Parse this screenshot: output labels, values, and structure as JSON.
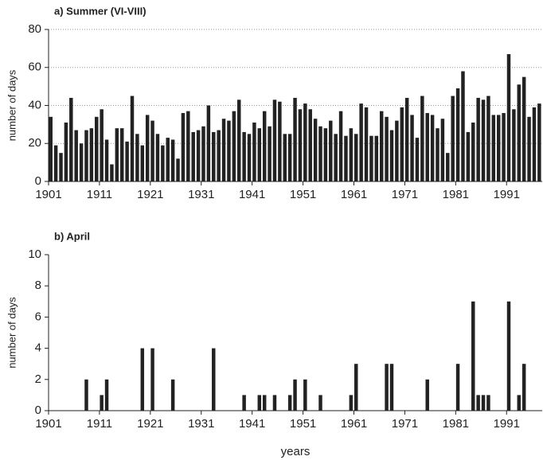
{
  "chart_data": [
    {
      "type": "bar",
      "title": "a) Summer (VI-VIII)",
      "ylabel": "number of days",
      "color": "#222222",
      "grid": true,
      "x": [
        1901,
        1902,
        1903,
        1904,
        1905,
        1906,
        1907,
        1908,
        1909,
        1910,
        1911,
        1912,
        1913,
        1914,
        1915,
        1916,
        1917,
        1918,
        1919,
        1920,
        1921,
        1922,
        1923,
        1924,
        1925,
        1926,
        1927,
        1928,
        1929,
        1930,
        1931,
        1932,
        1933,
        1934,
        1935,
        1936,
        1937,
        1938,
        1939,
        1940,
        1941,
        1942,
        1943,
        1944,
        1945,
        1946,
        1947,
        1948,
        1949,
        1950,
        1951,
        1952,
        1953,
        1954,
        1955,
        1956,
        1957,
        1958,
        1959,
        1960,
        1961,
        1962,
        1963,
        1964,
        1965,
        1966,
        1967,
        1968,
        1969,
        1970,
        1971,
        1972,
        1973,
        1974,
        1975,
        1976,
        1977,
        1978,
        1979,
        1980,
        1981,
        1982,
        1983,
        1984,
        1985,
        1986,
        1987,
        1988,
        1989,
        1990,
        1991,
        1992,
        1993,
        1994,
        1995,
        1996,
        1997
      ],
      "values": [
        34,
        19,
        15,
        31,
        44,
        27,
        20,
        27,
        28,
        34,
        38,
        22,
        9,
        28,
        28,
        21,
        45,
        25,
        19,
        35,
        32,
        25,
        19,
        23,
        22,
        12,
        36,
        37,
        26,
        27,
        29,
        40,
        26,
        27,
        33,
        32,
        37,
        43,
        26,
        25,
        31,
        28,
        37,
        29,
        43,
        42,
        25,
        25,
        44,
        38,
        41,
        38,
        33,
        29,
        28,
        32,
        25,
        37,
        24,
        28,
        25,
        41,
        39,
        24,
        24,
        37,
        34,
        27,
        32,
        39,
        44,
        35,
        23,
        45,
        36,
        35,
        28,
        33,
        15,
        45,
        49,
        58,
        26,
        31,
        44,
        43,
        45,
        35,
        35,
        36,
        67,
        38,
        51,
        55,
        34,
        39,
        41
      ],
      "xlim": [
        1901,
        1998
      ],
      "xticks": [
        1901,
        1911,
        1921,
        1931,
        1941,
        1951,
        1961,
        1971,
        1981,
        1991
      ],
      "ylim": [
        0,
        80
      ],
      "yticks": [
        0,
        20,
        40,
        60,
        80
      ]
    },
    {
      "type": "bar",
      "title": "b) April",
      "ylabel": "number of days",
      "xlabel": "years",
      "color": "#222222",
      "grid": false,
      "x": [
        1901,
        1902,
        1903,
        1904,
        1905,
        1906,
        1907,
        1908,
        1909,
        1910,
        1911,
        1912,
        1913,
        1914,
        1915,
        1916,
        1917,
        1918,
        1919,
        1920,
        1921,
        1922,
        1923,
        1924,
        1925,
        1926,
        1927,
        1928,
        1929,
        1930,
        1931,
        1932,
        1933,
        1934,
        1935,
        1936,
        1937,
        1938,
        1939,
        1940,
        1941,
        1942,
        1943,
        1944,
        1945,
        1946,
        1947,
        1948,
        1949,
        1950,
        1951,
        1952,
        1953,
        1954,
        1955,
        1956,
        1957,
        1958,
        1959,
        1960,
        1961,
        1962,
        1963,
        1964,
        1965,
        1966,
        1967,
        1968,
        1969,
        1970,
        1971,
        1972,
        1973,
        1974,
        1975,
        1976,
        1977,
        1978,
        1979,
        1980,
        1981,
        1982,
        1983,
        1984,
        1985,
        1986,
        1987,
        1988,
        1989,
        1990,
        1991,
        1992,
        1993,
        1994,
        1995,
        1996,
        1997
      ],
      "values": [
        0,
        0,
        0,
        0,
        0,
        0,
        0,
        2,
        0,
        0,
        1,
        2,
        0,
        0,
        0,
        0,
        0,
        0,
        4,
        0,
        4,
        0,
        0,
        0,
        2,
        0,
        0,
        0,
        0,
        0,
        0,
        0,
        4,
        0,
        0,
        0,
        0,
        0,
        1,
        0,
        0,
        1,
        1,
        0,
        1,
        0,
        0,
        1,
        2,
        0,
        2,
        0,
        0,
        1,
        0,
        0,
        0,
        0,
        0,
        1,
        3,
        0,
        0,
        0,
        0,
        0,
        3,
        3,
        0,
        0,
        0,
        0,
        0,
        0,
        2,
        0,
        0,
        0,
        0,
        0,
        3,
        0,
        0,
        7,
        1,
        1,
        1,
        0,
        0,
        0,
        7,
        0,
        1,
        3,
        0,
        0,
        0
      ],
      "xlim": [
        1901,
        1998
      ],
      "xticks": [
        1901,
        1911,
        1921,
        1931,
        1941,
        1951,
        1961,
        1971,
        1981,
        1991
      ],
      "ylim": [
        0,
        10
      ],
      "yticks": [
        0,
        2,
        4,
        6,
        8,
        10
      ]
    }
  ]
}
